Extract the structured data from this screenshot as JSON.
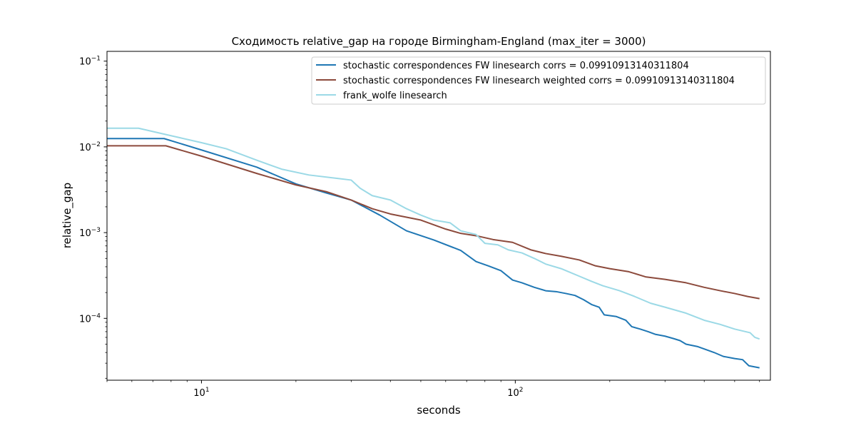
{
  "chart_data": {
    "type": "line",
    "title": "Сходимость relative_gap на городе Birmingham-England  (max_iter = 3000)",
    "xlabel": "seconds",
    "ylabel": "relative_gap",
    "xscale": "log",
    "yscale": "log",
    "xlim": [
      5.0,
      650
    ],
    "ylim": [
      1.9e-05,
      0.13
    ],
    "x_tick_labels": [
      {
        "value": 10,
        "base": "10",
        "exp": "1"
      },
      {
        "value": 100,
        "base": "10",
        "exp": "2"
      }
    ],
    "y_tick_labels": [
      {
        "value": 0.1,
        "base": "10",
        "exp": "−1"
      },
      {
        "value": 0.01,
        "base": "10",
        "exp": "−2"
      },
      {
        "value": 0.001,
        "base": "10",
        "exp": "−3"
      },
      {
        "value": 0.0001,
        "base": "10",
        "exp": "−4"
      }
    ],
    "grid": false,
    "legend": "top-right",
    "series": [
      {
        "name": "stochastic correspondences FW linesearch corrs = 0.09910913140311804",
        "color": "#1f77b4",
        "points": [
          [
            5.0,
            0.0125
          ],
          [
            7.6,
            0.0125
          ],
          [
            10,
            0.0092
          ],
          [
            15,
            0.0058
          ],
          [
            20,
            0.0037
          ],
          [
            25,
            0.0029
          ],
          [
            30,
            0.0024
          ],
          [
            37,
            0.0016
          ],
          [
            45,
            0.00105
          ],
          [
            55,
            0.00082
          ],
          [
            67,
            0.00062
          ],
          [
            75,
            0.00046
          ],
          [
            82,
            0.00041
          ],
          [
            90,
            0.00036
          ],
          [
            98,
            0.00028
          ],
          [
            105,
            0.00026
          ],
          [
            115,
            0.00023
          ],
          [
            125,
            0.00021
          ],
          [
            135,
            0.000205
          ],
          [
            145,
            0.000195
          ],
          [
            155,
            0.000185
          ],
          [
            165,
            0.000165
          ],
          [
            175,
            0.000145
          ],
          [
            185,
            0.000135
          ],
          [
            192,
            0.00011
          ],
          [
            210,
            0.000105
          ],
          [
            225,
            9.5e-05
          ],
          [
            235,
            8e-05
          ],
          [
            250,
            7.5e-05
          ],
          [
            265,
            7e-05
          ],
          [
            280,
            6.5e-05
          ],
          [
            300,
            6.2e-05
          ],
          [
            320,
            5.8e-05
          ],
          [
            335,
            5.5e-05
          ],
          [
            350,
            5e-05
          ],
          [
            380,
            4.7e-05
          ],
          [
            400,
            4.4e-05
          ],
          [
            430,
            4e-05
          ],
          [
            460,
            3.6e-05
          ],
          [
            500,
            3.4e-05
          ],
          [
            530,
            3.3e-05
          ],
          [
            555,
            2.8e-05
          ],
          [
            600,
            2.65e-05
          ]
        ]
      },
      {
        "name": "stochastic correspondences FW linesearch weighted corrs = 0.09910913140311804",
        "color": "#8c4a3c",
        "points": [
          [
            5.0,
            0.0103
          ],
          [
            7.7,
            0.0103
          ],
          [
            10,
            0.0078
          ],
          [
            15,
            0.0049
          ],
          [
            20,
            0.0036
          ],
          [
            25,
            0.003
          ],
          [
            30,
            0.0024
          ],
          [
            35,
            0.0019
          ],
          [
            40,
            0.00165
          ],
          [
            50,
            0.0014
          ],
          [
            60,
            0.0011
          ],
          [
            67,
            0.00098
          ],
          [
            75,
            0.00092
          ],
          [
            85,
            0.00083
          ],
          [
            98,
            0.00077
          ],
          [
            112,
            0.00063
          ],
          [
            125,
            0.00057
          ],
          [
            140,
            0.00053
          ],
          [
            160,
            0.00048
          ],
          [
            180,
            0.00041
          ],
          [
            200,
            0.00038
          ],
          [
            230,
            0.00035
          ],
          [
            260,
            0.000305
          ],
          [
            300,
            0.000285
          ],
          [
            350,
            0.00026
          ],
          [
            400,
            0.00023
          ],
          [
            450,
            0.00021
          ],
          [
            500,
            0.000195
          ],
          [
            550,
            0.00018
          ],
          [
            600,
            0.00017
          ]
        ]
      },
      {
        "name": "frank_wolfe linesearch",
        "color": "#9bd9e6",
        "points": [
          [
            5.0,
            0.0165
          ],
          [
            6.3,
            0.0165
          ],
          [
            8,
            0.0135
          ],
          [
            10,
            0.0112
          ],
          [
            12,
            0.0095
          ],
          [
            15,
            0.007
          ],
          [
            18,
            0.0055
          ],
          [
            22,
            0.0047
          ],
          [
            27,
            0.0043
          ],
          [
            30,
            0.0041
          ],
          [
            32,
            0.0033
          ],
          [
            35,
            0.0027
          ],
          [
            40,
            0.0024
          ],
          [
            45,
            0.0019
          ],
          [
            50,
            0.0016
          ],
          [
            55,
            0.0014
          ],
          [
            62,
            0.0013
          ],
          [
            67,
            0.00105
          ],
          [
            75,
            0.00095
          ],
          [
            80,
            0.00075
          ],
          [
            88,
            0.00072
          ],
          [
            95,
            0.00063
          ],
          [
            105,
            0.00058
          ],
          [
            115,
            0.0005
          ],
          [
            125,
            0.00043
          ],
          [
            140,
            0.00038
          ],
          [
            160,
            0.00031
          ],
          [
            175,
            0.00027
          ],
          [
            190,
            0.00024
          ],
          [
            215,
            0.00021
          ],
          [
            240,
            0.00018
          ],
          [
            270,
            0.00015
          ],
          [
            300,
            0.000135
          ],
          [
            350,
            0.000115
          ],
          [
            400,
            9.5e-05
          ],
          [
            450,
            8.5e-05
          ],
          [
            500,
            7.5e-05
          ],
          [
            560,
            6.8e-05
          ],
          [
            580,
            6e-05
          ],
          [
            600,
            5.75e-05
          ]
        ]
      }
    ]
  }
}
